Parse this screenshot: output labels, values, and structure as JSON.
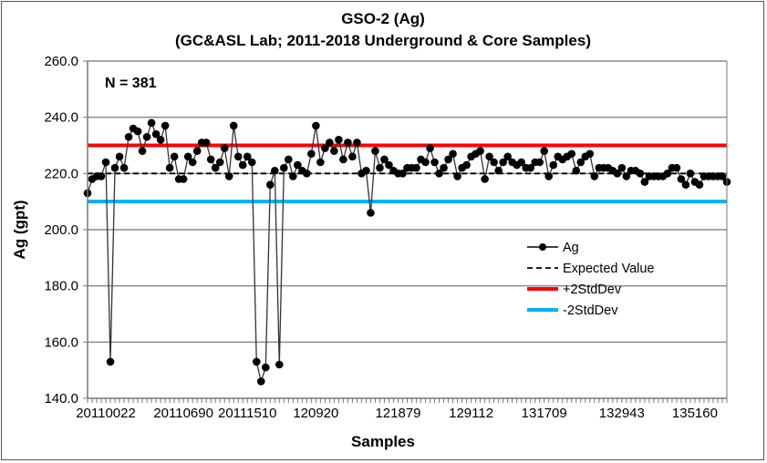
{
  "chart_data": {
    "type": "line",
    "title": "GSO-2 (Ag)",
    "subtitle": "(GC&ASL Lab; 2011-2018 Underground & Core Samples)",
    "annotation": "N = 381",
    "xlabel": "Samples",
    "ylabel": "Ag (gpt)",
    "ylim": [
      140,
      260
    ],
    "yticks": [
      "140.0",
      "160.0",
      "180.0",
      "200.0",
      "220.0",
      "240.0",
      "260.0"
    ],
    "grid": true,
    "xtick_labels": [
      {
        "index": 4,
        "label": "20110022"
      },
      {
        "index": 21,
        "label": "20110690"
      },
      {
        "index": 35,
        "label": "20111510"
      },
      {
        "index": 50,
        "label": "120920"
      },
      {
        "index": 68,
        "label": "121879"
      },
      {
        "index": 84,
        "label": "129112"
      },
      {
        "index": 100,
        "label": "131709"
      },
      {
        "index": 117,
        "label": "132943"
      },
      {
        "index": 133,
        "label": "135160"
      }
    ],
    "legend_position": "center-right",
    "series": [
      {
        "name": "Ag",
        "color": "#000000",
        "style": "line-marker",
        "values": [
          213,
          218,
          219,
          219,
          224,
          153,
          222,
          226,
          222,
          233,
          236,
          235,
          228,
          233,
          238,
          234,
          232,
          237,
          222,
          226,
          218,
          218,
          226,
          224,
          228,
          231,
          231,
          225,
          222,
          224,
          229,
          219,
          237,
          226,
          223,
          226,
          224,
          153,
          146,
          151,
          216,
          221,
          152,
          222,
          225,
          219,
          223,
          221,
          220,
          227,
          237,
          224,
          229,
          231,
          228,
          232,
          225,
          231,
          226,
          231,
          220,
          221,
          206,
          228,
          222,
          225,
          223,
          221,
          220,
          220,
          222,
          222,
          222,
          225,
          224,
          229,
          224,
          220,
          222,
          225,
          227,
          219,
          222,
          223,
          226,
          227,
          228,
          218,
          226,
          224,
          221,
          224,
          226,
          224,
          223,
          224,
          222,
          222,
          224,
          224,
          228,
          219,
          223,
          226,
          225,
          226,
          227,
          221,
          224,
          226,
          227,
          219,
          222,
          222,
          222,
          221,
          220,
          222,
          219,
          221,
          221,
          220,
          217,
          219,
          219,
          219,
          219,
          220,
          222,
          222,
          218,
          216,
          220,
          217,
          216,
          219,
          219,
          219,
          219,
          219,
          217
        ]
      },
      {
        "name": "Expected Value",
        "color": "#000000",
        "style": "dashed",
        "value": 220
      },
      {
        "name": "+2StdDev",
        "color": "#ff0000",
        "style": "solid",
        "value": 230
      },
      {
        "name": "-2StdDev",
        "color": "#00b0f0",
        "style": "solid",
        "value": 210
      }
    ]
  }
}
